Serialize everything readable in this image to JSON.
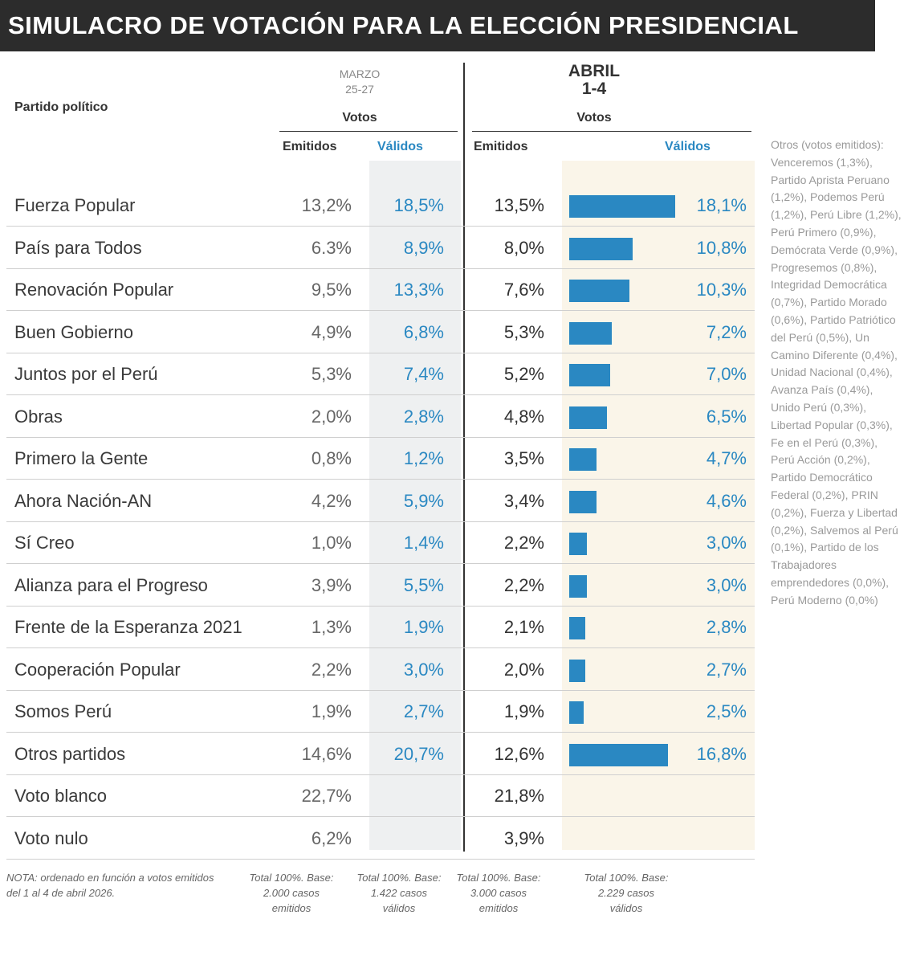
{
  "title": "SIMULACRO DE VOTACIÓN PARA LA ELECCIÓN PRESIDENCIAL",
  "headers": {
    "party": "Partido político",
    "marzo_line1": "MARZO",
    "marzo_line2": "25-27",
    "abril_line1": "ABRIL",
    "abril_line2": "1-4",
    "votos": "Votos",
    "emitidos": "Emitidos",
    "validos": "Válidos"
  },
  "colors": {
    "accent": "#2a88c2",
    "title_bg": "#2c2c2c"
  },
  "chart_data": {
    "type": "table",
    "title": "SIMULACRO DE VOTACIÓN PARA LA ELECCIÓN PRESIDENCIAL",
    "columns": [
      "Partido político",
      "Marzo 25-27 Emitidos",
      "Marzo 25-27 Válidos",
      "Abril 1-4 Emitidos",
      "Abril 1-4 Válidos"
    ],
    "rows": [
      {
        "party": "Fuerza Popular",
        "m_emit": "13,2%",
        "m_val": "18,5%",
        "a_emit": "13,5%",
        "a_val": "18,1%",
        "a_val_num": 18.1
      },
      {
        "party": "País para Todos",
        "m_emit": "6.3%",
        "m_val": "8,9%",
        "a_emit": "8,0%",
        "a_val": "10,8%",
        "a_val_num": 10.8
      },
      {
        "party": "Renovación Popular",
        "m_emit": "9,5%",
        "m_val": "13,3%",
        "a_emit": "7,6%",
        "a_val": "10,3%",
        "a_val_num": 10.3
      },
      {
        "party": "Buen Gobierno",
        "m_emit": "4,9%",
        "m_val": "6,8%",
        "a_emit": "5,3%",
        "a_val": "7,2%",
        "a_val_num": 7.2
      },
      {
        "party": "Juntos por el Perú",
        "m_emit": "5,3%",
        "m_val": "7,4%",
        "a_emit": "5,2%",
        "a_val": "7,0%",
        "a_val_num": 7.0
      },
      {
        "party": "Obras",
        "m_emit": "2,0%",
        "m_val": "2,8%",
        "a_emit": "4,8%",
        "a_val": "6,5%",
        "a_val_num": 6.5
      },
      {
        "party": "Primero la Gente",
        "m_emit": "0,8%",
        "m_val": "1,2%",
        "a_emit": "3,5%",
        "a_val": "4,7%",
        "a_val_num": 4.7
      },
      {
        "party": "Ahora Nación-AN",
        "m_emit": "4,2%",
        "m_val": "5,9%",
        "a_emit": "3,4%",
        "a_val": "4,6%",
        "a_val_num": 4.6
      },
      {
        "party": "Sí Creo",
        "m_emit": "1,0%",
        "m_val": "1,4%",
        "a_emit": "2,2%",
        "a_val": "3,0%",
        "a_val_num": 3.0
      },
      {
        "party": "Alianza para el Progreso",
        "m_emit": "3,9%",
        "m_val": "5,5%",
        "a_emit": "2,2%",
        "a_val": "3,0%",
        "a_val_num": 3.0
      },
      {
        "party": "Frente de la Esperanza 2021",
        "m_emit": "1,3%",
        "m_val": "1,9%",
        "a_emit": "2,1%",
        "a_val": "2,8%",
        "a_val_num": 2.8
      },
      {
        "party": "Cooperación Popular",
        "m_emit": "2,2%",
        "m_val": "3,0%",
        "a_emit": "2,0%",
        "a_val": "2,7%",
        "a_val_num": 2.7
      },
      {
        "party": "Somos Perú",
        "m_emit": "1,9%",
        "m_val": "2,7%",
        "a_emit": "1,9%",
        "a_val": "2,5%",
        "a_val_num": 2.5
      },
      {
        "party": "Otros partidos",
        "m_emit": "14,6%",
        "m_val": "20,7%",
        "a_emit": "12,6%",
        "a_val": "16,8%",
        "a_val_num": 16.8
      },
      {
        "party": "Voto blanco",
        "m_emit": "22,7%",
        "m_val": "",
        "a_emit": "21,8%",
        "a_val": "",
        "a_val_num": null
      },
      {
        "party": "Voto nulo",
        "m_emit": "6,2%",
        "m_val": "",
        "a_emit": "3,9%",
        "a_val": "",
        "a_val_num": null
      }
    ],
    "bar_series": "Abril 1-4 Válidos",
    "bar_max": 18.1
  },
  "side_note": "Otros (votos emitidos): Venceremos (1,3%), Partido Aprista Peruano (1,2%), Podemos Perú (1,2%), Perú Libre (1,2%), Perú Primero (0,9%), Demócrata Verde (0,9%), Progresemos (0,8%), Integridad Democrática (0,7%), Partido Morado (0,6%), Partido Patriótico del Perú (0,5%), Un Camino Diferente (0,4%), Unidad Nacional (0,4%), Avanza País (0,4%), Unido Perú (0,3%), Libertad Popular (0,3%), Fe en el Perú (0,3%), Perú Acción (0,2%), Partido Democrático Federal (0,2%), PRIN (0,2%), Fuerza y Libertad (0,2%), Salvemos al Perú (0,1%), Partido de los Trabajadores emprendedores (0,0%), Perú Moderno (0,0%)",
  "footer": {
    "note": "NOTA: ordenado en función a votos emitidos del 1 al 4 de abril 2026.",
    "col1": "Total 100%. Base: 2.000 casos emitidos",
    "col2": "Total 100%. Base: 1.422 casos válidos",
    "col3": "Total 100%. Base: 3.000 casos emitidos",
    "col4": "Total 100%. Base: 2.229 casos válidos"
  }
}
